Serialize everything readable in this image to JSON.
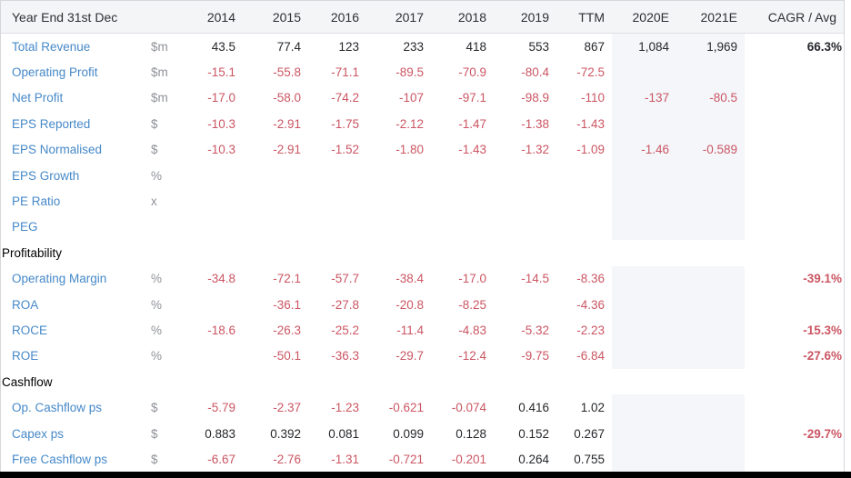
{
  "table": {
    "header": {
      "label": "Year End 31st Dec",
      "unit": "",
      "columns": [
        "2014",
        "2015",
        "2016",
        "2017",
        "2018",
        "2019",
        "TTM",
        "2020E",
        "2021E",
        "CAGR / Avg"
      ]
    },
    "forecast_columns": [
      "2020E",
      "2021E"
    ],
    "rows": [
      {
        "type": "data",
        "label": "Total Revenue",
        "unit": "$m",
        "values": [
          "43.5",
          "77.4",
          "123",
          "233",
          "418",
          "553",
          "867",
          "1,084",
          "1,969",
          "66.3%"
        ]
      },
      {
        "type": "data",
        "label": "Operating Profit",
        "unit": "$m",
        "values": [
          "-15.1",
          "-55.8",
          "-71.1",
          "-89.5",
          "-70.9",
          "-80.4",
          "-72.5",
          "",
          "",
          ""
        ]
      },
      {
        "type": "data",
        "label": "Net Profit",
        "unit": "$m",
        "values": [
          "-17.0",
          "-58.0",
          "-74.2",
          "-107",
          "-97.1",
          "-98.9",
          "-110",
          "-137",
          "-80.5",
          ""
        ]
      },
      {
        "type": "data",
        "label": "EPS Reported",
        "unit": "$",
        "values": [
          "-10.3",
          "-2.91",
          "-1.75",
          "-2.12",
          "-1.47",
          "-1.38",
          "-1.43",
          "",
          "",
          ""
        ]
      },
      {
        "type": "data",
        "label": "EPS Normalised",
        "unit": "$",
        "values": [
          "-10.3",
          "-2.91",
          "-1.52",
          "-1.80",
          "-1.43",
          "-1.32",
          "-1.09",
          "-1.46",
          "-0.589",
          ""
        ]
      },
      {
        "type": "data",
        "label": "EPS Growth",
        "unit": "%",
        "values": [
          "",
          "",
          "",
          "",
          "",
          "",
          "",
          "",
          "",
          ""
        ]
      },
      {
        "type": "data",
        "label": "PE Ratio",
        "unit": "x",
        "values": [
          "",
          "",
          "",
          "",
          "",
          "",
          "",
          "",
          "",
          ""
        ]
      },
      {
        "type": "data",
        "label": "PEG",
        "unit": "",
        "values": [
          "",
          "",
          "",
          "",
          "",
          "",
          "",
          "",
          "",
          ""
        ]
      },
      {
        "type": "section",
        "label": "Profitability"
      },
      {
        "type": "data",
        "label": "Operating Margin",
        "unit": "%",
        "values": [
          "-34.8",
          "-72.1",
          "-57.7",
          "-38.4",
          "-17.0",
          "-14.5",
          "-8.36",
          "",
          "",
          "-39.1%"
        ]
      },
      {
        "type": "data",
        "label": "ROA",
        "unit": "%",
        "values": [
          "",
          "-36.1",
          "-27.8",
          "-20.8",
          "-8.25",
          "",
          "-4.36",
          "",
          "",
          ""
        ]
      },
      {
        "type": "data",
        "label": "ROCE",
        "unit": "%",
        "values": [
          "-18.6",
          "-26.3",
          "-25.2",
          "-11.4",
          "-4.83",
          "-5.32",
          "-2.23",
          "",
          "",
          "-15.3%"
        ]
      },
      {
        "type": "data",
        "label": "ROE",
        "unit": "%",
        "values": [
          "",
          "-50.1",
          "-36.3",
          "-29.7",
          "-12.4",
          "-9.75",
          "-6.84",
          "",
          "",
          "-27.6%"
        ]
      },
      {
        "type": "section",
        "label": "Cashflow"
      },
      {
        "type": "data",
        "label": "Op. Cashflow ps",
        "unit": "$",
        "values": [
          "-5.79",
          "-2.37",
          "-1.23",
          "-0.621",
          "-0.074",
          "0.416",
          "1.02",
          "",
          "",
          ""
        ]
      },
      {
        "type": "data",
        "label": "Capex ps",
        "unit": "$",
        "values": [
          "0.883",
          "0.392",
          "0.081",
          "0.099",
          "0.128",
          "0.152",
          "0.267",
          "",
          "",
          "-29.7%"
        ]
      },
      {
        "type": "data",
        "label": "Free Cashflow ps",
        "unit": "$",
        "values": [
          "-6.67",
          "-2.76",
          "-1.31",
          "-0.721",
          "-0.201",
          "0.264",
          "0.755",
          "",
          "",
          ""
        ]
      }
    ]
  },
  "colors": {
    "label_blue": "#4689c8",
    "negative_red": "#cb5663",
    "positive_dark": "#26282c",
    "unit_gray": "#8f9298",
    "header_bg": "#f4f5f7",
    "forecast_band_bg": "#f4f6fa",
    "border": "#d5d7db",
    "bottom_bar": "#000000"
  }
}
